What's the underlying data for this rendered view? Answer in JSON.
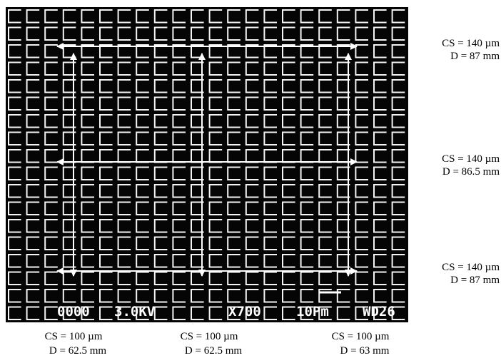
{
  "overlay": {
    "code": "0000",
    "voltage": "3.0KV",
    "magnification": "X700",
    "scale": "10Pm",
    "working_distance": "WD26"
  },
  "right_labels": [
    {
      "cs": "CS = 140 µm",
      "d": "D = 87 mm"
    },
    {
      "cs": "CS = 140 µm",
      "d": "D = 86.5 mm"
    },
    {
      "cs": "CS = 140 µm",
      "d": "D = 87 mm"
    }
  ],
  "bottom_labels": [
    {
      "cs": "CS = 100 µm",
      "d": "D = 62.5 mm"
    },
    {
      "cs": "CS = 100 µm",
      "d": "D = 62.5 mm"
    },
    {
      "cs": "CS = 100 µm",
      "d": "D = 63 mm"
    }
  ]
}
